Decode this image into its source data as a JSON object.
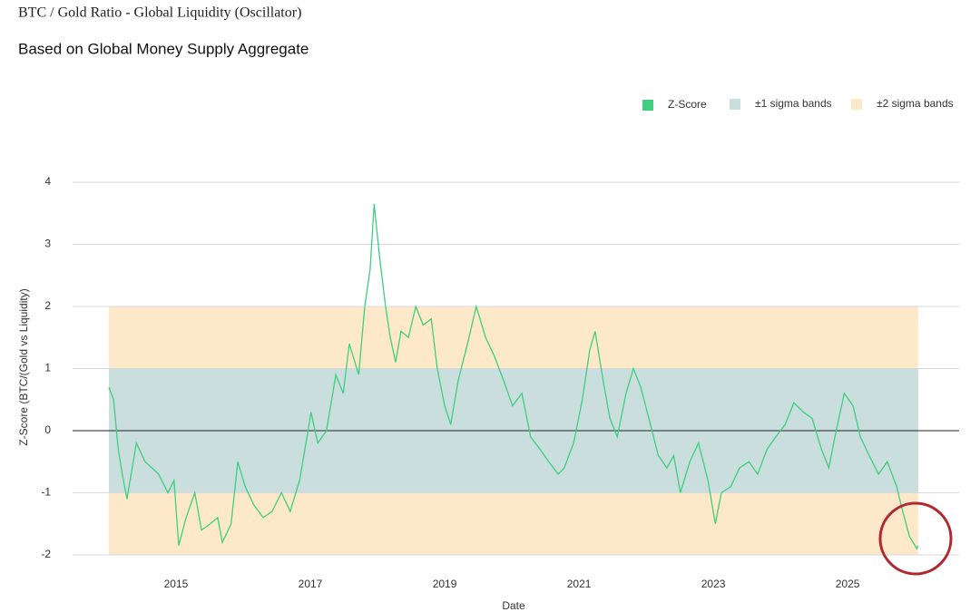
{
  "chart_data": {
    "type": "line",
    "title": "BTC / Gold Ratio - Global Liquidity (Oscillator)",
    "subtitle": "Based on Global Money Supply Aggregate",
    "xlabel": "Date",
    "ylabel": "Z-Score (BTC/(Gold vs Liquidity)",
    "x": [
      2014.0,
      2014.07,
      2014.14,
      2014.2,
      2014.27,
      2014.41,
      2014.54,
      2014.74,
      2014.88,
      2014.97,
      2015.04,
      2015.15,
      2015.28,
      2015.38,
      2015.51,
      2015.62,
      2015.69,
      2015.82,
      2015.92,
      2016.03,
      2016.16,
      2016.3,
      2016.43,
      2016.57,
      2016.7,
      2016.84,
      2016.95,
      2017.01,
      2017.11,
      2017.24,
      2017.38,
      2017.49,
      2017.58,
      2017.72,
      2017.81,
      2017.89,
      2017.95,
      2018.03,
      2018.12,
      2018.19,
      2018.27,
      2018.35,
      2018.46,
      2018.57,
      2018.68,
      2018.8,
      2018.89,
      2019.0,
      2019.09,
      2019.2,
      2019.34,
      2019.47,
      2019.61,
      2019.74,
      2019.88,
      2020.01,
      2020.15,
      2020.28,
      2020.42,
      2020.55,
      2020.69,
      2020.78,
      2020.92,
      2021.05,
      2021.16,
      2021.24,
      2021.36,
      2021.46,
      2021.57,
      2021.7,
      2021.81,
      2021.92,
      2022.04,
      2022.18,
      2022.31,
      2022.41,
      2022.51,
      2022.65,
      2022.78,
      2022.92,
      2023.03,
      2023.12,
      2023.26,
      2023.39,
      2023.53,
      2023.66,
      2023.8,
      2023.93,
      2024.07,
      2024.2,
      2024.34,
      2024.47,
      2024.61,
      2024.72,
      2024.81,
      2024.95,
      2025.08,
      2025.19,
      2025.32,
      2025.46,
      2025.59,
      2025.73,
      2025.82,
      2025.92,
      2026.03,
      2026.05
    ],
    "series": [
      {
        "name": "Z-Score",
        "color": "#3ecf7f",
        "values": [
          0.7,
          0.5,
          -0.3,
          -0.7,
          -1.1,
          -0.2,
          -0.5,
          -0.7,
          -1.0,
          -0.8,
          -1.85,
          -1.4,
          -1.0,
          -1.6,
          -1.5,
          -1.4,
          -1.8,
          -1.5,
          -0.5,
          -0.9,
          -1.2,
          -1.4,
          -1.3,
          -1.0,
          -1.3,
          -0.8,
          -0.1,
          0.3,
          -0.2,
          0.0,
          0.9,
          0.6,
          1.4,
          0.9,
          2.0,
          2.6,
          3.65,
          2.8,
          2.0,
          1.5,
          1.1,
          1.6,
          1.5,
          2.0,
          1.7,
          1.8,
          1.0,
          0.4,
          0.1,
          0.8,
          1.4,
          2.0,
          1.5,
          1.2,
          0.8,
          0.4,
          0.6,
          -0.1,
          -0.3,
          -0.5,
          -0.7,
          -0.6,
          -0.2,
          0.5,
          1.3,
          1.6,
          0.8,
          0.2,
          -0.1,
          0.6,
          1.0,
          0.7,
          0.2,
          -0.4,
          -0.6,
          -0.4,
          -1.0,
          -0.5,
          -0.2,
          -0.8,
          -1.5,
          -1.0,
          -0.9,
          -0.6,
          -0.5,
          -0.7,
          -0.3,
          -0.1,
          0.1,
          0.45,
          0.3,
          0.2,
          -0.3,
          -0.6,
          -0.1,
          0.6,
          0.4,
          -0.1,
          -0.4,
          -0.7,
          -0.5,
          -0.9,
          -1.3,
          -1.7,
          -1.9,
          -1.85
        ]
      }
    ],
    "bands": [
      {
        "name": "±1 sigma bands",
        "color": "#c9dedd",
        "range": [
          -1,
          1
        ]
      },
      {
        "name": "±2 sigma bands",
        "color": "#fde8c9",
        "range": [
          -2,
          2
        ]
      }
    ],
    "xlim": [
      2013.46,
      2026.66
    ],
    "xticks": [
      2015,
      2017,
      2019,
      2021,
      2023,
      2025
    ],
    "ylim": [
      -2,
      4
    ],
    "yticks": [
      -2,
      -1,
      0,
      1,
      2,
      3,
      4
    ],
    "grid": true,
    "zero_line": true,
    "legend": "top-right"
  }
}
